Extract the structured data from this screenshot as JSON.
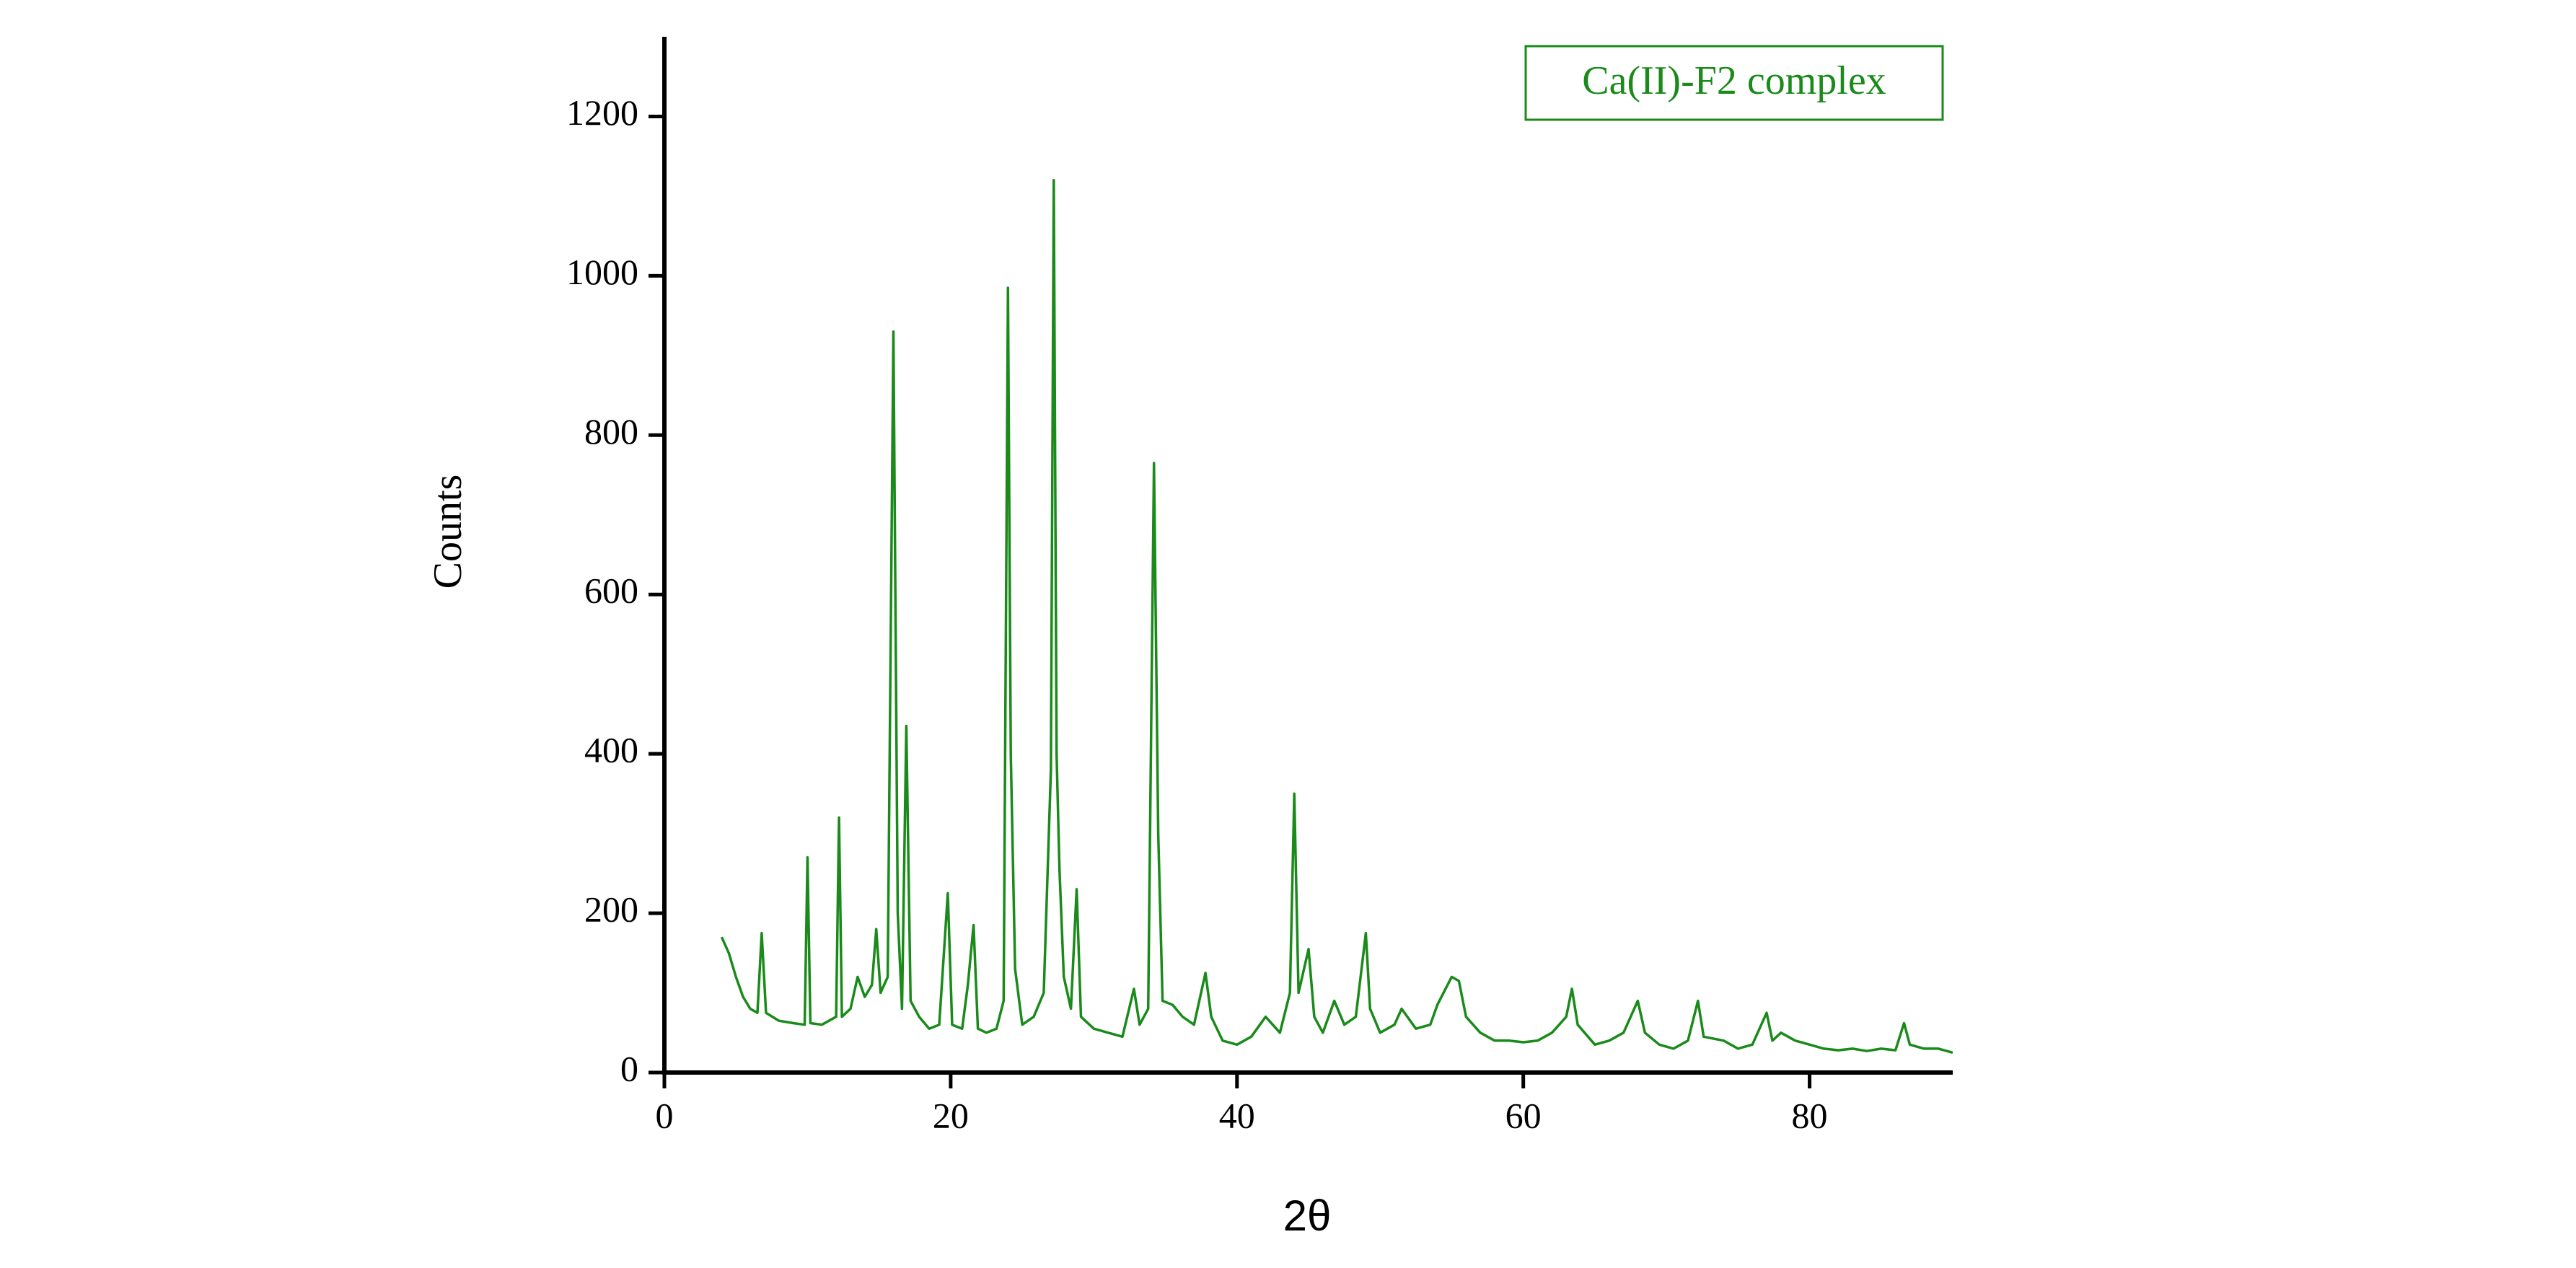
{
  "chart_data": {
    "type": "line",
    "x_label": "2θ",
    "y_label": "Counts",
    "xlim": [
      0,
      90
    ],
    "ylim": [
      0,
      1300
    ],
    "xticks": [
      0,
      20,
      40,
      60,
      80
    ],
    "yticks": [
      0,
      200,
      400,
      600,
      800,
      1000,
      1200
    ],
    "legend": "upper right",
    "series": [
      {
        "name": "Ca(II)-F2 complex",
        "color": "#1a8a1a",
        "x": [
          4,
          4.5,
          5,
          5.5,
          6,
          6.5,
          6.8,
          7.1,
          8,
          9,
          9.8,
          10,
          10.2,
          11,
          12,
          12.2,
          12.4,
          13,
          13.5,
          14,
          14.5,
          14.8,
          15.1,
          15.6,
          16,
          16.3,
          16.6,
          16.9,
          17.2,
          17.8,
          18.5,
          19.2,
          19.8,
          20.1,
          20.8,
          21.2,
          21.6,
          21.9,
          22.5,
          23.2,
          23.7,
          24,
          24.2,
          24.5,
          25,
          25.8,
          26.5,
          27,
          27.2,
          27.4,
          27.6,
          27.9,
          28.4,
          28.8,
          29.1,
          30,
          31,
          32,
          32.8,
          33.2,
          33.8,
          34.2,
          34.5,
          34.8,
          35.5,
          36.2,
          37,
          37.8,
          38.2,
          39,
          40,
          41,
          42,
          43,
          43.7,
          44,
          44.3,
          45,
          45.4,
          46,
          46.8,
          47.5,
          48.3,
          49,
          49.3,
          50,
          51,
          51.5,
          52.5,
          53.5,
          54,
          55,
          55.5,
          56,
          57,
          58,
          59,
          60,
          61,
          62,
          63,
          63.4,
          63.8,
          65,
          66,
          67,
          68,
          68.5,
          69.5,
          70.5,
          71.5,
          72.2,
          72.6,
          74,
          75,
          76,
          77,
          77.4,
          78,
          79,
          80,
          81,
          82,
          83,
          84,
          85,
          86,
          86.6,
          87,
          88,
          89,
          90
        ],
        "values": [
          170,
          150,
          120,
          95,
          80,
          75,
          175,
          75,
          65,
          62,
          60,
          270,
          62,
          60,
          70,
          320,
          70,
          80,
          120,
          95,
          110,
          180,
          100,
          120,
          930,
          200,
          80,
          435,
          90,
          70,
          55,
          60,
          225,
          60,
          55,
          110,
          185,
          55,
          50,
          55,
          90,
          985,
          400,
          130,
          60,
          70,
          100,
          380,
          1120,
          400,
          255,
          120,
          80,
          230,
          70,
          55,
          50,
          45,
          105,
          60,
          80,
          765,
          300,
          90,
          85,
          70,
          60,
          125,
          70,
          40,
          35,
          45,
          70,
          50,
          100,
          350,
          100,
          155,
          70,
          50,
          90,
          60,
          70,
          175,
          80,
          50,
          60,
          80,
          55,
          60,
          85,
          120,
          115,
          70,
          50,
          40,
          40,
          38,
          40,
          50,
          70,
          105,
          60,
          35,
          40,
          50,
          90,
          50,
          35,
          30,
          40,
          90,
          45,
          40,
          30,
          35,
          75,
          40,
          50,
          40,
          35,
          30,
          28,
          30,
          27,
          30,
          28,
          62,
          35,
          30,
          30,
          25
        ]
      }
    ]
  }
}
